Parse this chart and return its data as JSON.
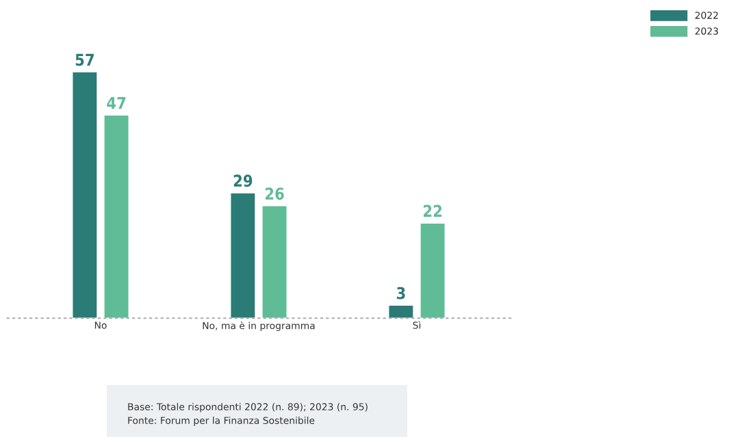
{
  "chart_data": {
    "type": "bar",
    "categories": [
      "No",
      "No, ma è in programma",
      "Sì"
    ],
    "series": [
      {
        "name": "2022",
        "color": "#2b7b77",
        "values": [
          57,
          29,
          3
        ]
      },
      {
        "name": "2023",
        "color": "#5fbc96",
        "values": [
          47,
          26,
          22
        ]
      }
    ],
    "data_labels": true,
    "legend": "top right",
    "tick_labels": "x",
    "grid": false,
    "annotations": [
      "Base: Totale rispondenti 2022 (n. 89); 2023 (n. 95)",
      "Fonte: Forum per la Finanza Sostenibile"
    ]
  }
}
